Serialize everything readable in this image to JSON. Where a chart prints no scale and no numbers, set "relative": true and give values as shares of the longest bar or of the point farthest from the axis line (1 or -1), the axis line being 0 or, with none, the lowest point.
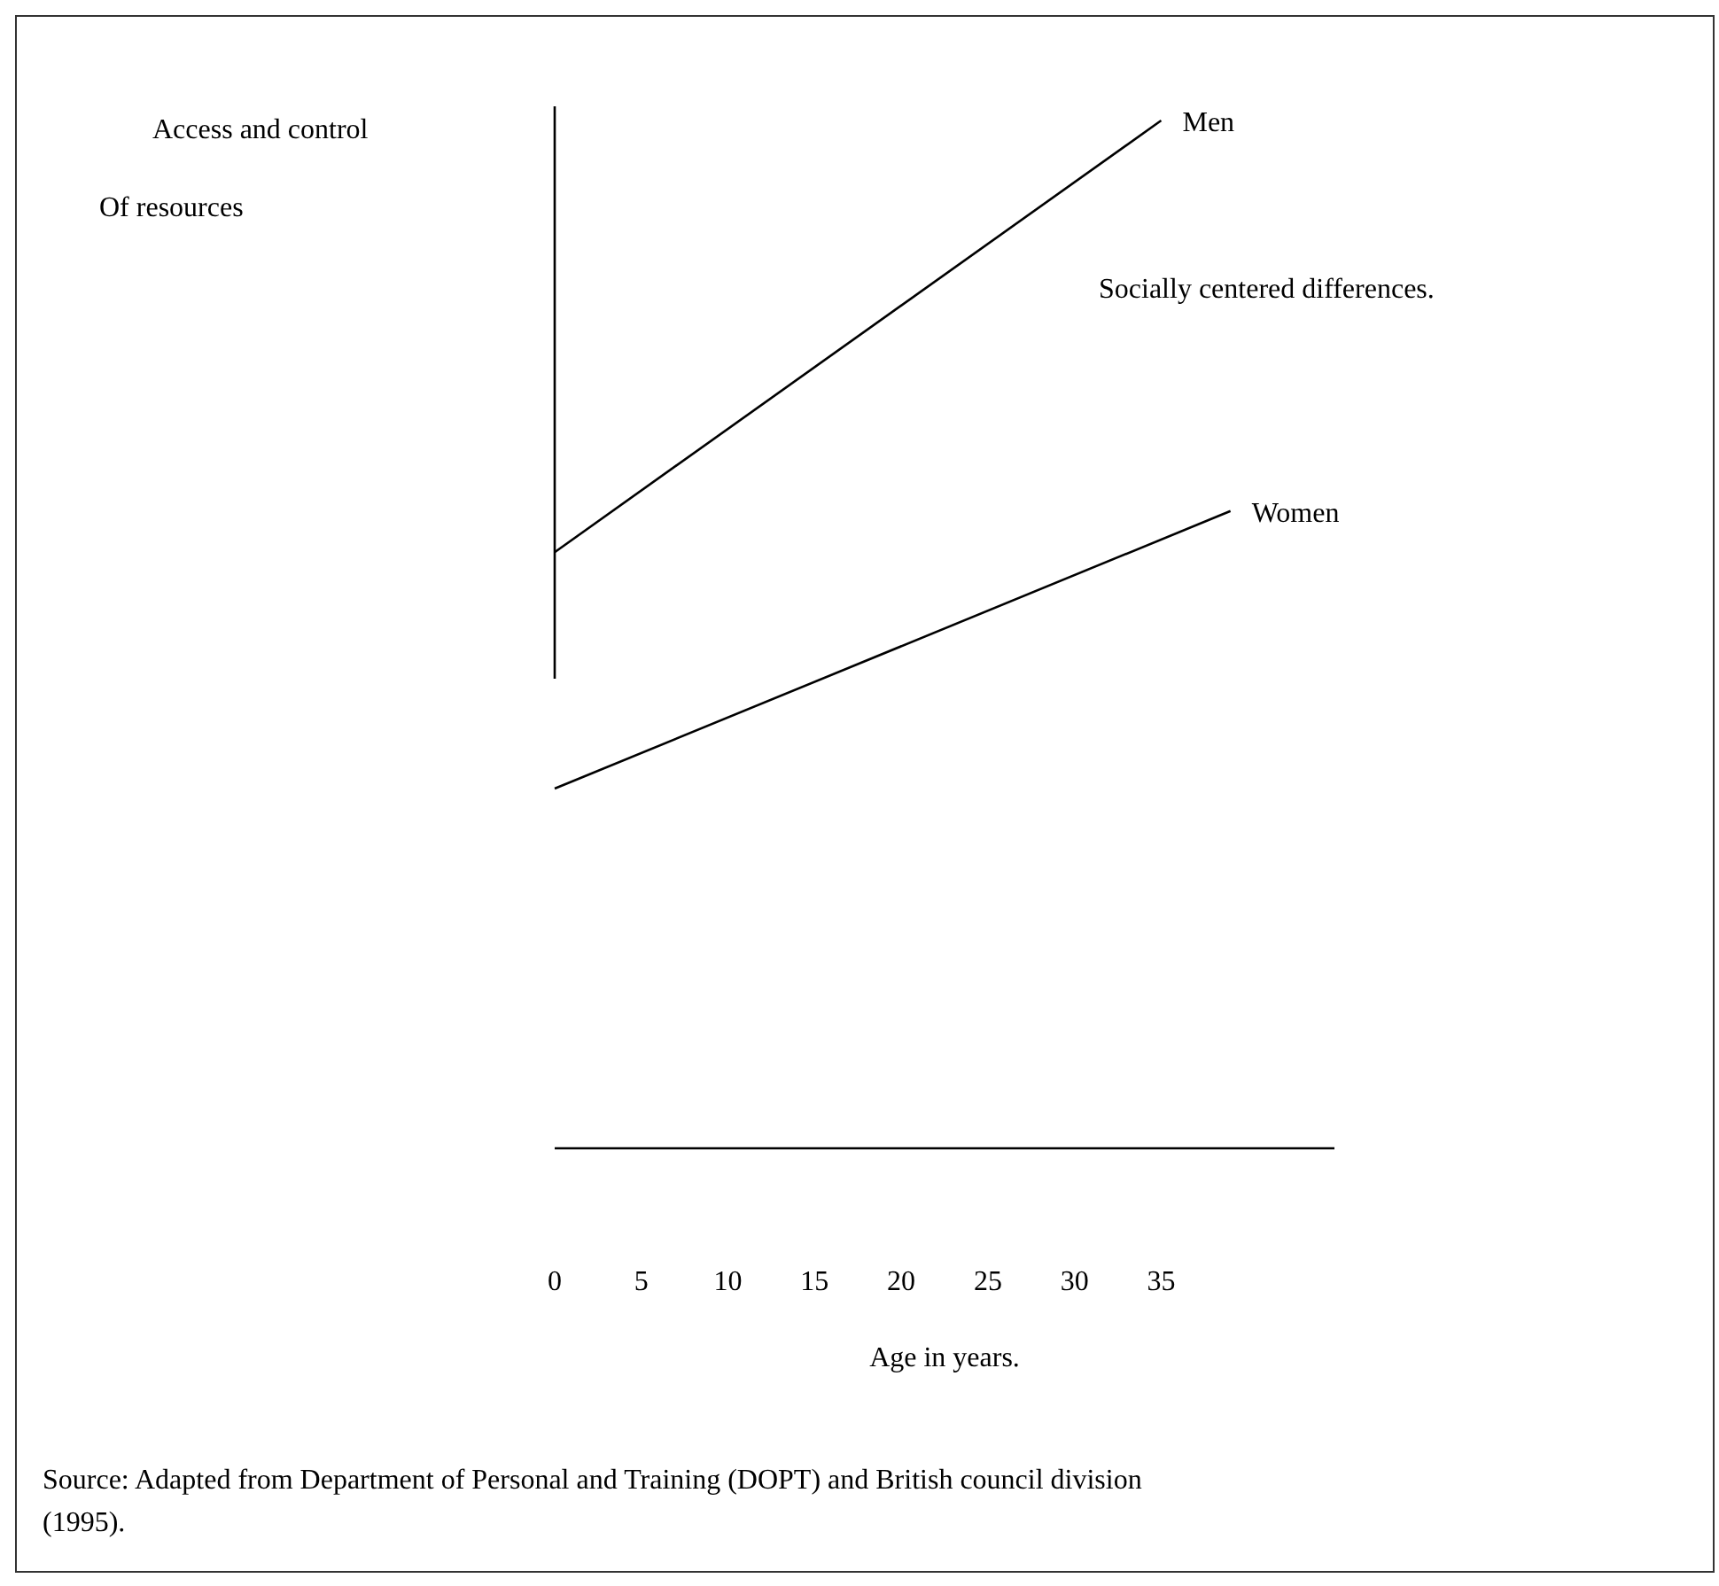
{
  "chart_data": {
    "type": "line",
    "relative": true,
    "ylabel": "Access and control\nOf resources",
    "xlabel": "Age in years.",
    "xlim": [
      0,
      45
    ],
    "xticks": [
      0,
      5,
      10,
      15,
      20,
      25,
      30,
      35
    ],
    "series": [
      {
        "name": "Men",
        "color": "#000000",
        "x": [
          0,
          35
        ],
        "values": [
          0.58,
          1
        ]
      },
      {
        "name": "Women",
        "color": "#000000",
        "x": [
          0,
          39
        ],
        "values": [
          0.35,
          0.62
        ]
      }
    ],
    "annotations": [
      "Socially centered differences.",
      "Source: Adapted from Department of Personal and Training (DOPT) and British council division (1995)."
    ],
    "legend": false,
    "grid": false,
    "marker": "none",
    "line_style": "solid"
  }
}
